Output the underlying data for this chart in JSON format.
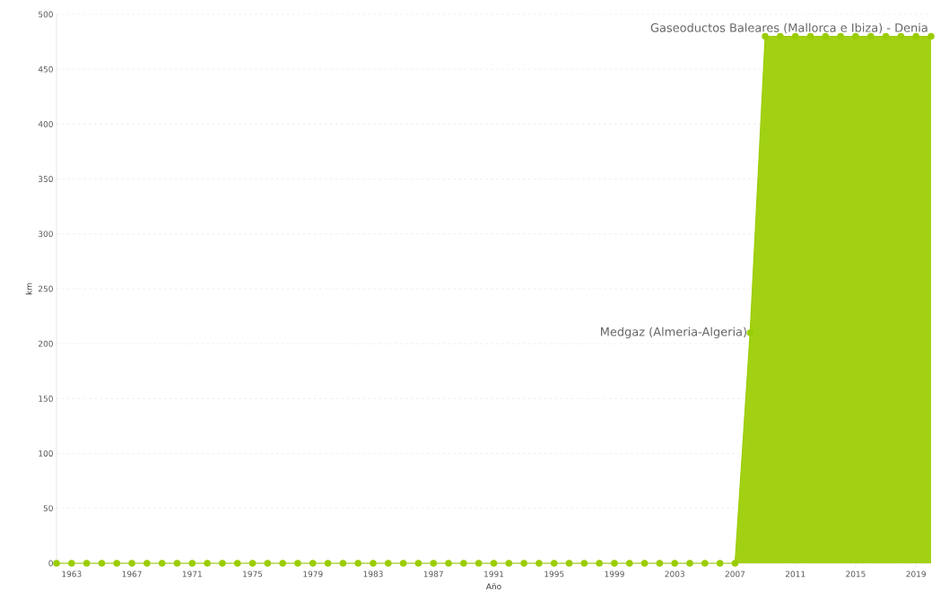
{
  "chart_data": {
    "type": "area",
    "xlabel": "Año",
    "ylabel": "km",
    "x": [
      1962,
      1963,
      1964,
      1965,
      1966,
      1967,
      1968,
      1969,
      1970,
      1971,
      1972,
      1973,
      1974,
      1975,
      1976,
      1977,
      1978,
      1979,
      1980,
      1981,
      1982,
      1983,
      1984,
      1985,
      1986,
      1987,
      1988,
      1989,
      1990,
      1991,
      1992,
      1993,
      1994,
      1995,
      1996,
      1997,
      1998,
      1999,
      2000,
      2001,
      2002,
      2003,
      2004,
      2005,
      2006,
      2007,
      2008,
      2009,
      2010,
      2011,
      2012,
      2013,
      2014,
      2015,
      2016,
      2017,
      2018,
      2019,
      2020
    ],
    "values": [
      0,
      0,
      0,
      0,
      0,
      0,
      0,
      0,
      0,
      0,
      0,
      0,
      0,
      0,
      0,
      0,
      0,
      0,
      0,
      0,
      0,
      0,
      0,
      0,
      0,
      0,
      0,
      0,
      0,
      0,
      0,
      0,
      0,
      0,
      0,
      0,
      0,
      0,
      0,
      0,
      0,
      0,
      0,
      0,
      0,
      0,
      210,
      480,
      480,
      480,
      480,
      480,
      480,
      480,
      480,
      480,
      480,
      480,
      480
    ],
    "color": "#9acd00",
    "xlim": [
      1962,
      2020
    ],
    "xticks": [
      1963,
      1967,
      1971,
      1975,
      1979,
      1983,
      1987,
      1991,
      1995,
      1999,
      2003,
      2007,
      2011,
      2015,
      2019
    ],
    "ylim": [
      0,
      500
    ],
    "yticks": [
      0,
      50,
      100,
      150,
      200,
      250,
      300,
      350,
      400,
      450,
      500
    ],
    "grid": "y",
    "marker": "circle",
    "annotations": [
      {
        "text": "Medgaz (Almeria-Algeria)",
        "x": 2008,
        "y": 210
      },
      {
        "text": "Gaseoductos Baleares (Mallorca e Ibiza) - Denia",
        "x": 2020,
        "y": 480
      }
    ]
  }
}
